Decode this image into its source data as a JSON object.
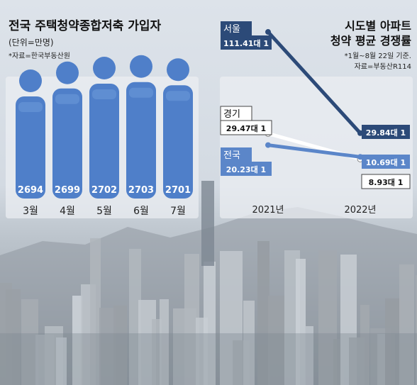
{
  "chart_data": [
    {
      "type": "bar",
      "title": "전국 주택청약종합저축 가입자",
      "subtitle": "(단위=만명)",
      "source": "*자료=한국부동산원",
      "categories": [
        "3월",
        "4월",
        "5월",
        "6월",
        "7월"
      ],
      "values": [
        2694,
        2699,
        2702,
        2703,
        2701
      ],
      "value_labels": [
        "2694",
        "2699",
        "2702",
        "2703",
        "2701"
      ],
      "colors": {
        "bar": "#4f7fc9",
        "bar_light": "#6b97d8",
        "label": "#ffffff"
      }
    },
    {
      "type": "line",
      "title_line1": "시도별 아파트",
      "title_line2": "청약 평균 경쟁률",
      "note": "*1월~8월 22일 기준.",
      "source": "자료=부동산R114",
      "x": [
        "2021년",
        "2022년"
      ],
      "series": [
        {
          "name": "서울",
          "values": [
            111.41,
            29.84
          ],
          "labels": [
            "111.41대 1",
            "29.84대 1"
          ],
          "color": "#2c4a78"
        },
        {
          "name": "경기",
          "values": [
            29.47,
            8.93
          ],
          "labels": [
            "29.47대 1",
            "8.93대 1"
          ],
          "color": "#ffffff"
        },
        {
          "name": "전국",
          "values": [
            20.23,
            10.69
          ],
          "labels": [
            "20.23대 1",
            "10.69대 1"
          ],
          "color": "#5b86c9"
        }
      ]
    }
  ]
}
